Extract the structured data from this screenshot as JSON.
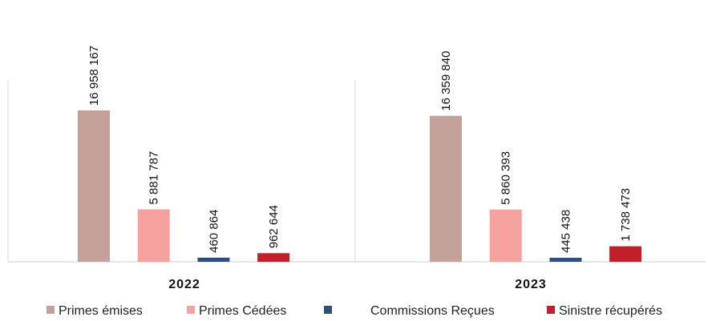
{
  "chart_data": {
    "type": "bar",
    "categories": [
      "2022",
      "2023"
    ],
    "series": [
      {
        "name": "Primes émises",
        "color": "#c4a09a",
        "values": [
          16958167,
          16359840
        ],
        "value_labels": [
          "16 958 167",
          "16 359 840"
        ]
      },
      {
        "name": "Primes Cédées",
        "color": "#f5a29f",
        "values": [
          5881787,
          5860393
        ],
        "value_labels": [
          "5 881 787",
          "5 860 393"
        ]
      },
      {
        "name": "Commissions Reçues",
        "color": "#2e4f7c",
        "values": [
          460864,
          445438
        ],
        "value_labels": [
          "460 864",
          "445 438"
        ]
      },
      {
        "name": "Sinistre récupérés",
        "color": "#c0202a",
        "values": [
          962644,
          1738473
        ],
        "value_labels": [
          "962 644",
          "1 738 473"
        ]
      }
    ]
  }
}
